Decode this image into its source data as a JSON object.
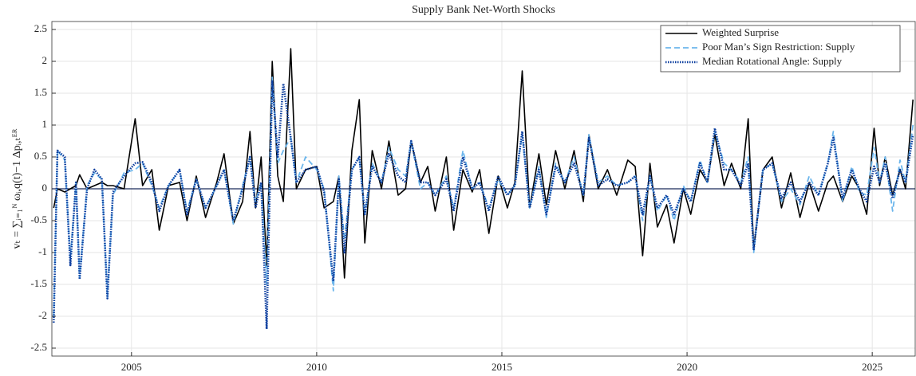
{
  "chart_data": {
    "type": "line",
    "title": "Supply Bank Net-Worth Shocks",
    "ylabel": "vₜ = ∑ᵢ₌₁ᴺ ωᵢ,q(t)−1 Δpᵢ,ₜᴱᴿ",
    "xlim": [
      2002.85,
      2026.16
    ],
    "xticks": [
      2005,
      2010,
      2015,
      2020,
      2025
    ],
    "ylim": [
      -2.625,
      2.625
    ],
    "yticks": [
      -2.5,
      -2,
      -1.5,
      -1,
      -0.5,
      0,
      0.5,
      1,
      1.5,
      2,
      2.5
    ],
    "grid": true,
    "legend": "upper right",
    "x": [
      2002.9,
      2003.0,
      2003.2,
      2003.35,
      2003.5,
      2003.6,
      2003.8,
      2004.0,
      2004.2,
      2004.35,
      2004.5,
      2004.8,
      2005.1,
      2005.3,
      2005.55,
      2005.75,
      2006.0,
      2006.3,
      2006.5,
      2006.75,
      2007.0,
      2007.3,
      2007.5,
      2007.75,
      2008.0,
      2008.2,
      2008.35,
      2008.5,
      2008.65,
      2008.8,
      2008.95,
      2009.1,
      2009.3,
      2009.45,
      2009.7,
      2010.0,
      2010.2,
      2010.45,
      2010.6,
      2010.75,
      2010.95,
      2011.15,
      2011.3,
      2011.5,
      2011.75,
      2011.95,
      2012.2,
      2012.4,
      2012.55,
      2012.8,
      2013.0,
      2013.2,
      2013.5,
      2013.7,
      2013.95,
      2014.2,
      2014.4,
      2014.65,
      2014.9,
      2015.15,
      2015.35,
      2015.55,
      2015.75,
      2016.0,
      2016.2,
      2016.45,
      2016.7,
      2016.95,
      2017.2,
      2017.35,
      2017.6,
      2017.85,
      2018.1,
      2018.4,
      2018.6,
      2018.8,
      2019.0,
      2019.2,
      2019.45,
      2019.65,
      2019.9,
      2020.1,
      2020.35,
      2020.55,
      2020.75,
      2021.0,
      2021.2,
      2021.45,
      2021.65,
      2021.8,
      2022.05,
      2022.3,
      2022.55,
      2022.8,
      2023.05,
      2023.3,
      2023.55,
      2023.8,
      2023.95,
      2024.2,
      2024.45,
      2024.65,
      2024.85,
      2025.05,
      2025.2,
      2025.35,
      2025.55,
      2025.75,
      2025.9,
      2026.1
    ],
    "series": [
      {
        "name": "Weighted Surprise",
        "color": "#000000",
        "linestyle": "solid",
        "values": [
          -0.3,
          0,
          -0.05,
          0,
          0.05,
          0.22,
          0,
          0.05,
          0.1,
          0.05,
          0.05,
          0,
          1.1,
          0.05,
          0.3,
          -0.65,
          0.05,
          0.1,
          -0.5,
          0.2,
          -0.45,
          0.1,
          0.55,
          -0.55,
          -0.2,
          0.9,
          -0.3,
          0.5,
          -1.2,
          2.0,
          0.2,
          -0.2,
          2.2,
          0,
          0.3,
          0.35,
          -0.3,
          -0.2,
          0.2,
          -1.4,
          0.6,
          1.4,
          -0.85,
          0.6,
          0,
          0.75,
          -0.1,
          0,
          0.75,
          0.1,
          0.35,
          -0.35,
          0.5,
          -0.65,
          0.3,
          -0.05,
          0.3,
          -0.7,
          0.2,
          -0.3,
          0.1,
          1.85,
          -0.3,
          0.55,
          -0.25,
          0.6,
          0,
          0.6,
          -0.2,
          0.85,
          0,
          0.3,
          -0.1,
          0.45,
          0.35,
          -1.05,
          0.4,
          -0.6,
          -0.25,
          -0.85,
          0,
          -0.4,
          0.3,
          0.1,
          0.85,
          0.05,
          0.4,
          0,
          1.1,
          -0.95,
          0.3,
          0.5,
          -0.3,
          0.25,
          -0.45,
          0.1,
          -0.35,
          0.1,
          0.2,
          -0.2,
          0.2,
          0,
          -0.4,
          0.95,
          0.05,
          0.5,
          -0.1,
          0.3,
          0,
          1.4
        ]
      },
      {
        "name": "Poor Man’s Sign Restriction: Supply",
        "color": "#6cb6ec",
        "linestyle": "dashed",
        "values": [
          -2.0,
          0.6,
          0.45,
          -1.1,
          0.1,
          -1.4,
          0.05,
          0.25,
          0.15,
          -1.7,
          -0.1,
          0.25,
          0.3,
          0.4,
          0.05,
          -0.3,
          0.05,
          0.3,
          -0.35,
          0.15,
          -0.3,
          0.05,
          0.3,
          -0.55,
          0.05,
          0.5,
          -0.2,
          0.1,
          -1.5,
          1.75,
          0.4,
          0.6,
          0.8,
          0.1,
          0.5,
          0.3,
          0,
          -1.6,
          0.2,
          -0.8,
          0.3,
          0.5,
          -0.4,
          0.4,
          0.1,
          0.65,
          0.3,
          0.2,
          0.75,
          0,
          0.1,
          -0.1,
          0.2,
          -0.3,
          0.6,
          0,
          0.1,
          -0.3,
          0.15,
          -0.1,
          0.05,
          0.85,
          -0.3,
          0.35,
          -0.45,
          0.4,
          0.1,
          0.5,
          -0.1,
          0.85,
          0.1,
          0.2,
          0.05,
          0.1,
          0.2,
          -0.5,
          0.2,
          -0.35,
          -0.1,
          -0.5,
          0.05,
          -0.2,
          0.45,
          0.1,
          0.9,
          0.4,
          0.3,
          0.1,
          0.5,
          -1.0,
          0.3,
          0.4,
          -0.2,
          0,
          -0.25,
          0.2,
          -0.1,
          0.4,
          0.9,
          -0.2,
          0.35,
          -0.05,
          -0.1,
          0.65,
          0.1,
          0.5,
          -0.35,
          0.45,
          0.1,
          1.0
        ]
      },
      {
        "name": "Median Rotational Angle: Supply",
        "color": "#0b3d9e",
        "linestyle": "dotted",
        "values": [
          -2.1,
          0.6,
          0.5,
          -1.2,
          0.1,
          -1.42,
          0,
          0.3,
          0.15,
          -1.72,
          -0.05,
          0.2,
          0.4,
          0.42,
          0.1,
          -0.35,
          0.05,
          0.3,
          -0.4,
          0.15,
          -0.3,
          0.05,
          0.3,
          -0.5,
          0,
          0.5,
          -0.3,
          0.1,
          -2.2,
          1.7,
          0.5,
          1.65,
          0.8,
          0.1,
          0.3,
          0.35,
          -0.05,
          -1.45,
          0.15,
          -1.0,
          0.3,
          0.5,
          -0.4,
          0.35,
          0.1,
          0.55,
          0.2,
          0.1,
          0.75,
          0.1,
          0.1,
          -0.1,
          0.15,
          -0.35,
          0.5,
          0,
          0.1,
          -0.35,
          0.2,
          -0.1,
          0.05,
          0.9,
          -0.3,
          0.3,
          -0.4,
          0.35,
          0.1,
          0.4,
          -0.1,
          0.8,
          0.05,
          0.15,
          0.05,
          0.1,
          0.2,
          -0.4,
          0.2,
          -0.3,
          -0.1,
          -0.4,
          0,
          -0.2,
          0.4,
          0.1,
          0.95,
          0.3,
          0.3,
          0.05,
          0.4,
          -0.95,
          0.3,
          0.4,
          -0.15,
          0.1,
          -0.2,
          0.1,
          -0.1,
          0.4,
          0.8,
          -0.15,
          0.3,
          0,
          -0.2,
          0.35,
          0.1,
          0.4,
          -0.15,
          0.3,
          0.1,
          0.85
        ]
      }
    ]
  }
}
